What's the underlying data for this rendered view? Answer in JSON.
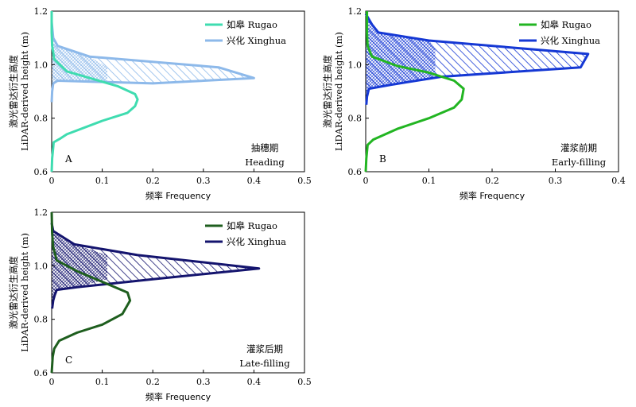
{
  "chart_data": [
    {
      "type": "line",
      "panel": "A",
      "stage_cn": "抽穗期",
      "stage_en": "Heading",
      "xlabel": "频率 Frequency",
      "ylabel_cn": "激光雷达衍生高度",
      "ylabel_en": "LiDAR-derived height (m)",
      "xlim": [
        0,
        0.5
      ],
      "ylim": [
        0.6,
        1.2
      ],
      "xticks": [
        "0",
        "0.1",
        "0.2",
        "0.3",
        "0.4",
        "0.5"
      ],
      "yticks": [
        "0.6",
        "0.8",
        "1.0",
        "1.2"
      ],
      "legend_position": "top-right",
      "colors": {
        "rugao": "#3fdcb0",
        "xinghua": "#8db9ea"
      },
      "series": [
        {
          "name": "如皋 Rugao",
          "key": "rugao",
          "x": [
            0.0,
            0.001,
            0.003,
            0.004,
            0.018,
            0.03,
            0.1,
            0.15,
            0.165,
            0.17,
            0.165,
            0.13,
            0.03,
            0.005,
            0.001,
            0.0,
            0.0
          ],
          "y": [
            0.6,
            0.65,
            0.69,
            0.71,
            0.725,
            0.74,
            0.79,
            0.82,
            0.845,
            0.87,
            0.89,
            0.92,
            0.975,
            1.02,
            1.07,
            1.12,
            1.2
          ]
        },
        {
          "name": "兴化 Xinghua",
          "key": "xinghua",
          "x": [
            0.0,
            0.001,
            0.003,
            0.012,
            0.2,
            0.4,
            0.33,
            0.075,
            0.012,
            0.003,
            0.0
          ],
          "y": [
            0.86,
            0.9,
            0.93,
            0.94,
            0.93,
            0.95,
            0.99,
            1.03,
            1.07,
            1.1,
            1.16
          ]
        }
      ]
    },
    {
      "type": "line",
      "panel": "B",
      "stage_cn": "灌浆前期",
      "stage_en": "Early-filling",
      "xlabel": "频率 Frequency",
      "ylabel_cn": "激光雷达衍生高度",
      "ylabel_en": "LiDAR-derived height (m)",
      "xlim": [
        0,
        0.4
      ],
      "ylim": [
        0.6,
        1.2
      ],
      "xticks": [
        "0",
        "0.1",
        "0.2",
        "0.3",
        "0.4"
      ],
      "yticks": [
        "0.6",
        "0.8",
        "1.0",
        "1.2"
      ],
      "legend_position": "top-right",
      "colors": {
        "rugao": "#22b522",
        "xinghua": "#1538d4"
      },
      "series": [
        {
          "name": "如皋 Rugao",
          "key": "rugao",
          "x": [
            0.0,
            0.001,
            0.003,
            0.012,
            0.05,
            0.1,
            0.14,
            0.152,
            0.155,
            0.14,
            0.1,
            0.05,
            0.01,
            0.003,
            0.002,
            0.002,
            0.002
          ],
          "y": [
            0.6,
            0.65,
            0.7,
            0.72,
            0.76,
            0.8,
            0.84,
            0.87,
            0.91,
            0.94,
            0.97,
            0.995,
            1.03,
            1.07,
            1.12,
            1.16,
            1.2
          ]
        },
        {
          "name": "兴化 Xinghua",
          "key": "xinghua",
          "x": [
            0.001,
            0.002,
            0.005,
            0.04,
            0.12,
            0.34,
            0.352,
            0.25,
            0.1,
            0.02,
            0.01,
            0.0
          ],
          "y": [
            0.85,
            0.88,
            0.91,
            0.925,
            0.955,
            0.99,
            1.04,
            1.06,
            1.09,
            1.12,
            1.15,
            1.19
          ]
        }
      ]
    },
    {
      "type": "line",
      "panel": "C",
      "stage_cn": "灌浆后期",
      "stage_en": "Late-filling",
      "xlabel": "频率 Frequency",
      "ylabel_cn": "激光雷达衍生高度",
      "ylabel_en": "LiDAR-derived height (m)",
      "xlim": [
        0,
        0.5
      ],
      "ylim": [
        0.6,
        1.2
      ],
      "xticks": [
        "0",
        "0.1",
        "0.2",
        "0.3",
        "0.4",
        "0.5"
      ],
      "yticks": [
        "0.6",
        "0.8",
        "1.0",
        "1.2"
      ],
      "legend_position": "top-right",
      "colors": {
        "rugao": "#1e5e1e",
        "xinghua": "#14146e"
      },
      "series": [
        {
          "name": "如皋 Rugao",
          "key": "rugao",
          "x": [
            0.0,
            0.002,
            0.005,
            0.015,
            0.05,
            0.1,
            0.14,
            0.155,
            0.15,
            0.1,
            0.05,
            0.01,
            0.003,
            0.001,
            0.0
          ],
          "y": [
            0.6,
            0.66,
            0.69,
            0.72,
            0.75,
            0.78,
            0.82,
            0.87,
            0.9,
            0.94,
            0.98,
            1.02,
            1.07,
            1.12,
            1.2
          ]
        },
        {
          "name": "兴化 Xinghua",
          "key": "xinghua",
          "x": [
            0.001,
            0.003,
            0.006,
            0.01,
            0.05,
            0.2,
            0.41,
            0.17,
            0.045,
            0.003,
            0.0
          ],
          "y": [
            0.84,
            0.87,
            0.89,
            0.91,
            0.92,
            0.95,
            0.99,
            1.04,
            1.08,
            1.13,
            1.16
          ]
        }
      ]
    }
  ]
}
